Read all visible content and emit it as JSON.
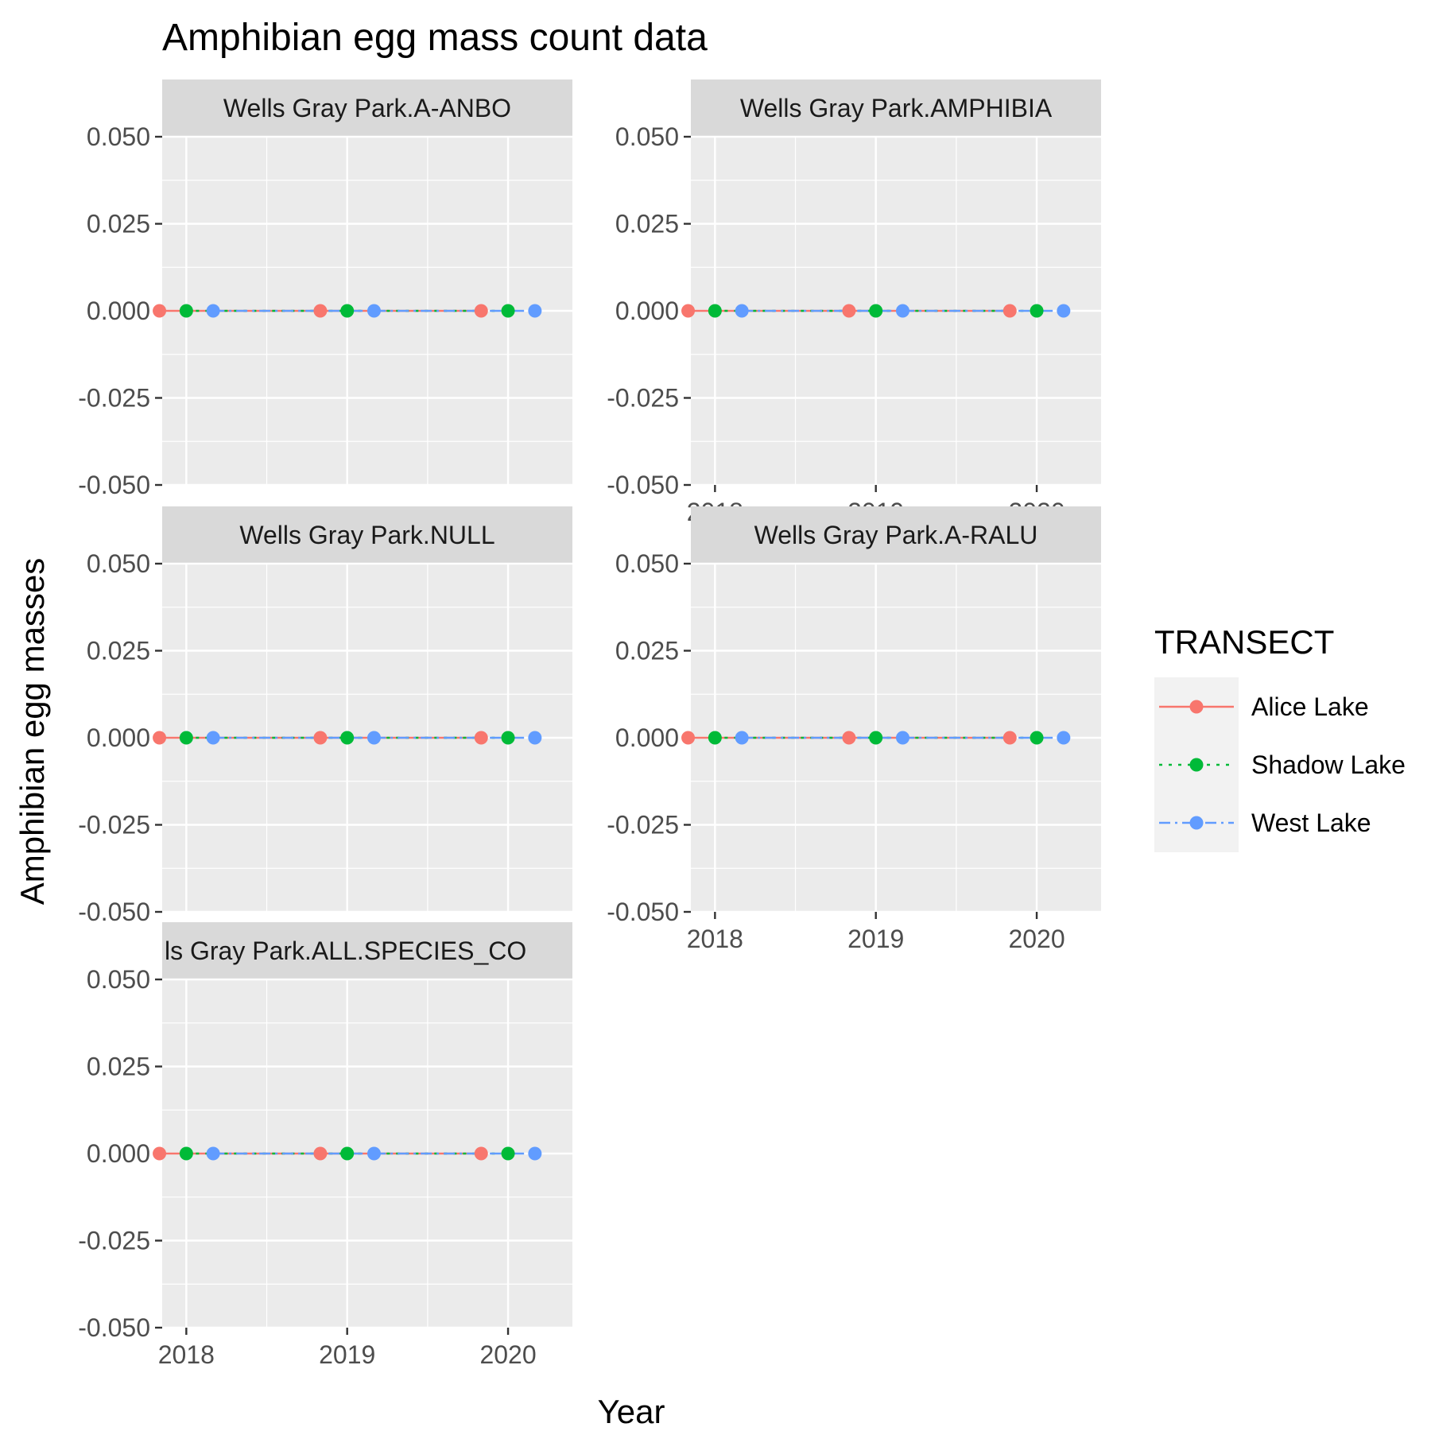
{
  "chart_data": {
    "type": "line",
    "title": "Amphibian egg mass count data",
    "xlabel": "Year",
    "ylabel": "Amphibian egg masses",
    "x": [
      2018,
      2019,
      2020
    ],
    "x_ticks": [
      "2018",
      "2019",
      "2020"
    ],
    "xlim": [
      2017.85,
      2020.4
    ],
    "ylim": [
      -0.05,
      0.05
    ],
    "y_ticks": [
      "0.050",
      "0.025",
      "0.000",
      "-0.025",
      "-0.050"
    ],
    "y_tick_values": [
      0.05,
      0.025,
      0,
      -0.025,
      -0.05
    ],
    "grid": true,
    "facet_label_left_visible": "ls Gray Park.ALL.SPECIES_CO",
    "legend": {
      "title": "TRANSECT",
      "position": "right"
    },
    "series_style": [
      {
        "name": "Alice Lake",
        "color": "#F8766D",
        "dash": "solid",
        "dodge": -0.167
      },
      {
        "name": "Shadow Lake",
        "color": "#00BA38",
        "dash": "dotted",
        "dodge": 0
      },
      {
        "name": "West Lake",
        "color": "#619CFF",
        "dash": "dashdot",
        "dodge": 0.167
      }
    ],
    "panels": [
      {
        "label": "Wells Gray Park.A-ANBO",
        "series": [
          {
            "name": "Alice Lake",
            "values": [
              0,
              0,
              0
            ]
          },
          {
            "name": "Shadow Lake",
            "values": [
              0,
              0,
              0
            ]
          },
          {
            "name": "West Lake",
            "values": [
              0,
              0,
              0
            ]
          }
        ]
      },
      {
        "label": "Wells Gray Park.AMPHIBIA",
        "series": [
          {
            "name": "Alice Lake",
            "values": [
              0,
              0,
              0
            ]
          },
          {
            "name": "Shadow Lake",
            "values": [
              0,
              0,
              0
            ]
          },
          {
            "name": "West Lake",
            "values": [
              0,
              0,
              0
            ]
          }
        ]
      },
      {
        "label": "Wells Gray Park.NULL",
        "series": [
          {
            "name": "Alice Lake",
            "values": [
              0,
              0,
              0
            ]
          },
          {
            "name": "Shadow Lake",
            "values": [
              0,
              0,
              0
            ]
          },
          {
            "name": "West Lake",
            "values": [
              0,
              0,
              0
            ]
          }
        ]
      },
      {
        "label": "Wells Gray Park.A-RALU",
        "series": [
          {
            "name": "Alice Lake",
            "values": [
              0,
              0,
              0
            ]
          },
          {
            "name": "Shadow Lake",
            "values": [
              0,
              0,
              0
            ]
          },
          {
            "name": "West Lake",
            "values": [
              0,
              0,
              0
            ]
          }
        ]
      },
      {
        "label": "Wells Gray Park.ALL.SPECIES_COUNT",
        "series": [
          {
            "name": "Alice Lake",
            "values": [
              0,
              0,
              0
            ]
          },
          {
            "name": "Shadow Lake",
            "values": [
              0,
              0,
              0
            ]
          },
          {
            "name": "West Lake",
            "values": [
              0,
              0,
              0
            ]
          }
        ]
      }
    ]
  }
}
